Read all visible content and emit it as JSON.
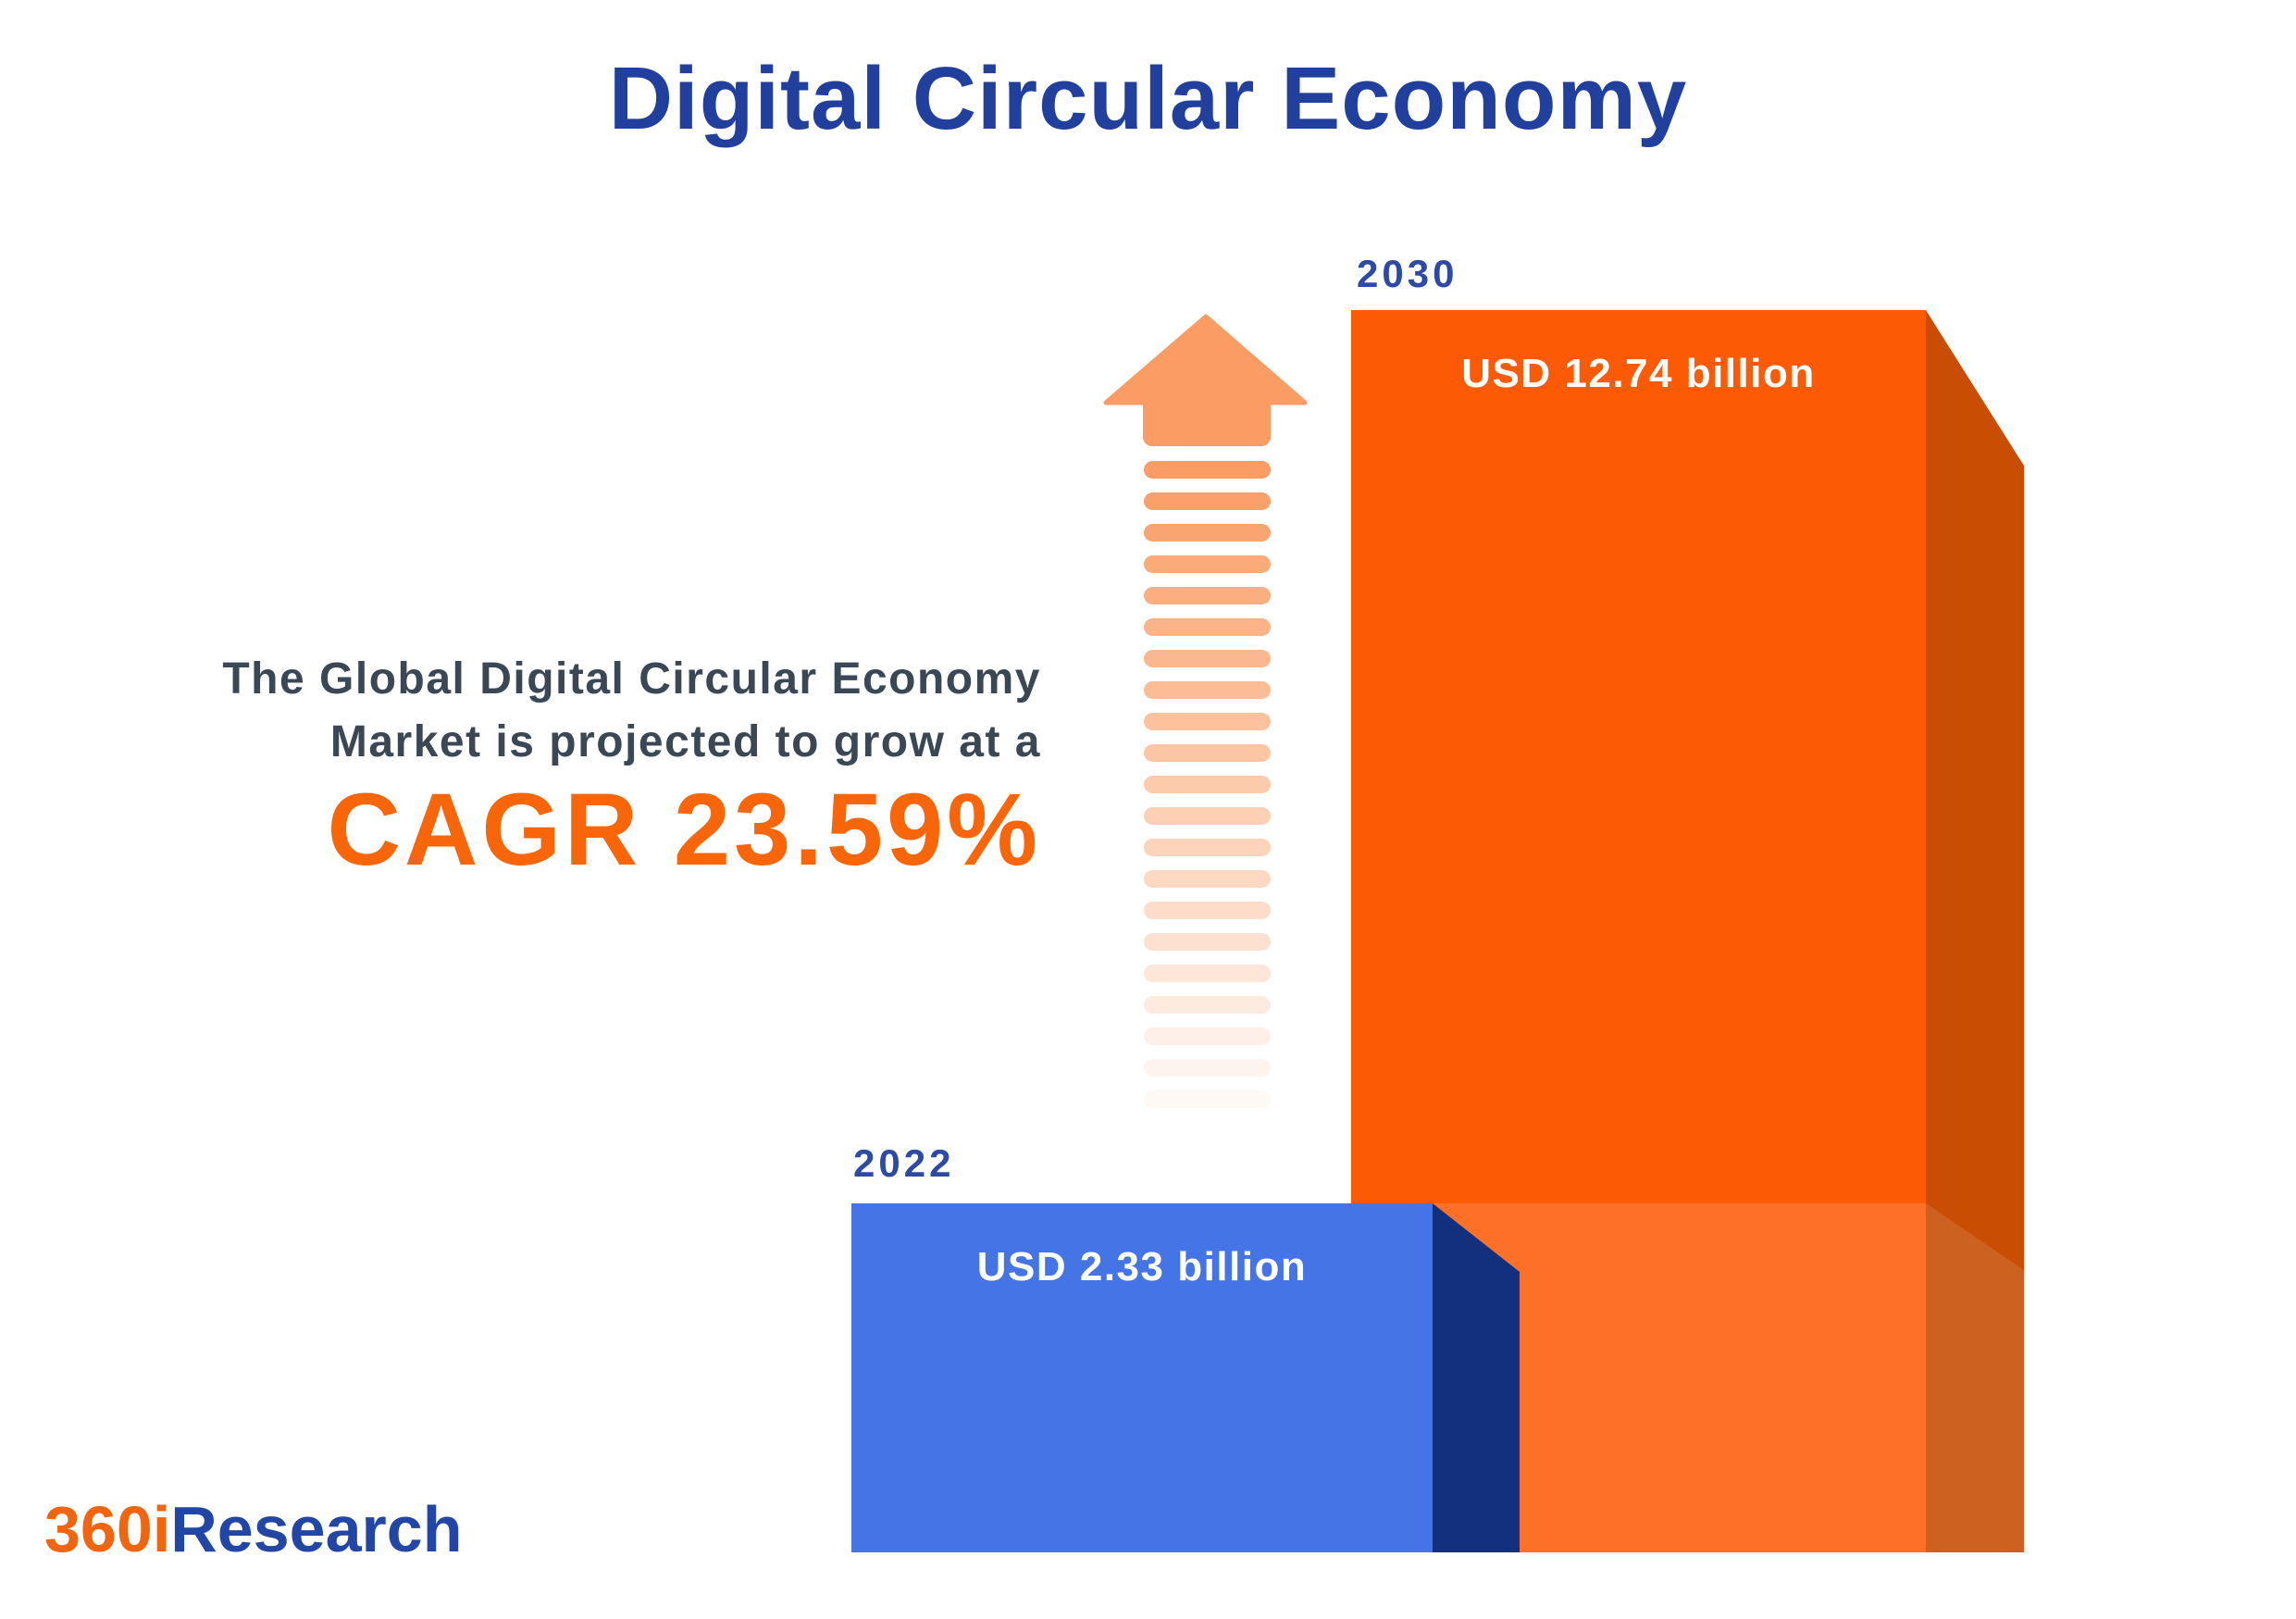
{
  "title": "Digital Circular Economy",
  "description": {
    "line1": "The Global Digital Circular Economy",
    "line2": "Market is projected to grow at a",
    "cagr": "CAGR 23.59%"
  },
  "bars": {
    "b2022": {
      "year": "2022",
      "value_label": "USD 2.33 billion"
    },
    "b2030": {
      "year": "2030",
      "value_label": "USD 12.74 billion"
    }
  },
  "logo": {
    "part1": "360i",
    "part2": "Research"
  },
  "colors": {
    "title_blue": "#21409E",
    "year_label_blue": "#2C4AA6",
    "description_slate": "#3A4754",
    "cagr_orange": "#F9660A",
    "bar_2022_front": "#4474E5",
    "bar_2022_side": "#12307E",
    "bar_2030_front": "#FC5A05",
    "bar_2030_front_light": "#FC7028",
    "bar_2030_side": "#C94E04",
    "bar_2030_side_light": "#CC6120",
    "arrow_orange": "#FA9C63",
    "logo_orange": "#F0650D",
    "logo_blue": "#2146A5",
    "background": "#FFFFFF"
  },
  "chart_data": {
    "type": "bar",
    "title": "Digital Circular Economy",
    "categories": [
      "2022",
      "2030"
    ],
    "values": [
      2.33,
      12.74
    ],
    "value_labels": [
      "USD 2.33 billion",
      "USD 12.74 billion"
    ],
    "unit": "USD billion",
    "cagr_percent": 23.59,
    "annotations": [
      "The Global Digital Circular Economy Market is projected to grow at a CAGR 23.59%"
    ],
    "bar_colors": [
      "#4474E5",
      "#FC5A05"
    ],
    "ylim": [
      0,
      12.74
    ],
    "grid": false,
    "legend": false,
    "style": "3d-infographic bars with upward growth arrow between them"
  }
}
